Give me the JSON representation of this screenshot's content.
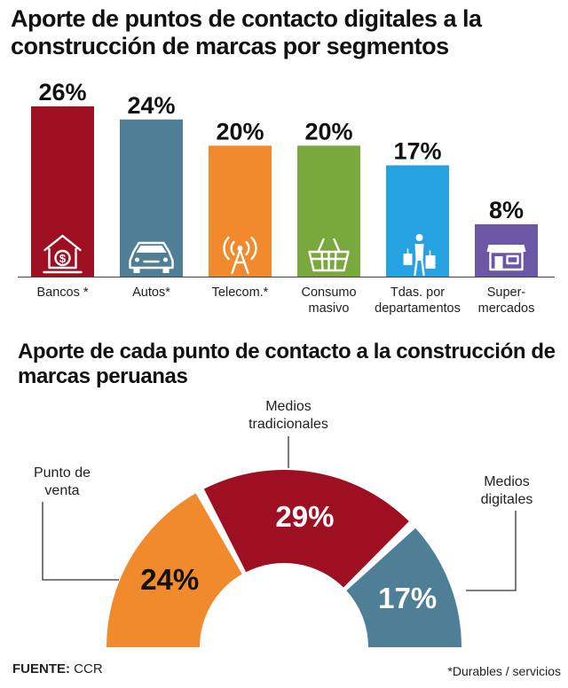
{
  "colors": {
    "bancos": "#9e0f22",
    "autos": "#4f7f97",
    "telecom": "#f18a2d",
    "consumo": "#79a83c",
    "tdas": "#27a2e0",
    "super": "#6b57a5",
    "punto_venta": "#f18a2d",
    "medios_tradicionales": "#9e0f22",
    "medios_digitales": "#4f7f97"
  },
  "chart_data": [
    {
      "type": "bar",
      "title": "Aporte de puntos de contacto digitales a la construcción de marcas por segmentos",
      "categories": [
        "Bancos *",
        "Autos*",
        "Telecom.*",
        "Consumo masivo",
        "Tdas. por departamentos",
        "Super- mercados"
      ],
      "category_lines": [
        [
          "Bancos *"
        ],
        [
          "Autos*"
        ],
        [
          "Telecom.*"
        ],
        [
          "Consumo",
          "masivo"
        ],
        [
          "Tdas. por",
          "departamentos"
        ],
        [
          "Super-",
          "mercados"
        ]
      ],
      "values": [
        26,
        24,
        20,
        20,
        17,
        8
      ],
      "value_labels": [
        "26%",
        "24%",
        "20%",
        "20%",
        "17%",
        "8%"
      ],
      "icons": [
        "bank-icon",
        "car-icon",
        "antenna-icon",
        "basket-icon",
        "shopper-icon",
        "store-icon"
      ],
      "ylim": [
        0,
        26
      ],
      "xlabel": "",
      "ylabel": ""
    },
    {
      "type": "pie",
      "title": "Aporte de cada punto de contacto a la construcción de marcas peruanas",
      "categories": [
        "Punto de venta",
        "Medios tradicionales",
        "Medios digitales"
      ],
      "category_lines": [
        [
          "Punto de",
          "venta"
        ],
        [
          "Medios",
          "tradicionales"
        ],
        [
          "Medios",
          "digitales"
        ]
      ],
      "values": [
        24,
        29,
        17
      ],
      "value_labels": [
        "24%",
        "29%",
        "17%"
      ]
    }
  ],
  "footer": {
    "source_label": "FUENTE:",
    "source_value": " CCR",
    "note": "*Durables / servicios"
  }
}
